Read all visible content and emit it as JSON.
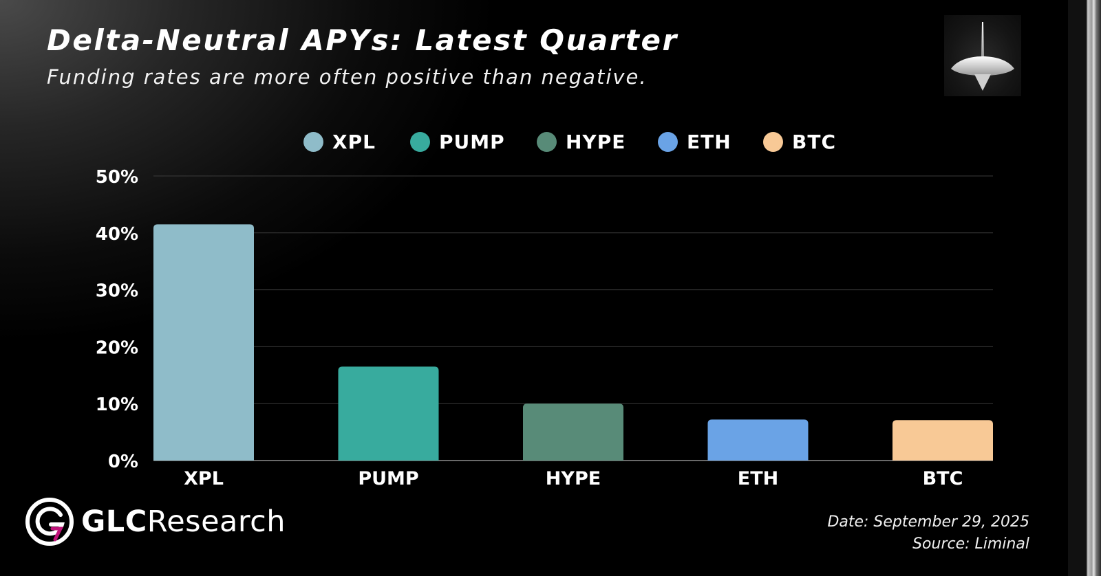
{
  "chart_data": {
    "type": "bar",
    "title": "Delta-Neutral APYs: Latest Quarter",
    "subtitle": "Funding rates are more often positive than negative.",
    "categories": [
      "XPL",
      "PUMP",
      "HYPE",
      "ETH",
      "BTC"
    ],
    "values": [
      41.5,
      16.5,
      10.0,
      7.2,
      7.1
    ],
    "colors": [
      "#8fbcc9",
      "#38ab9e",
      "#588b78",
      "#6aa3e6",
      "#f8c996"
    ],
    "legend": [
      {
        "name": "XPL",
        "color": "#8fbcc9"
      },
      {
        "name": "PUMP",
        "color": "#38ab9e"
      },
      {
        "name": "HYPE",
        "color": "#588b78"
      },
      {
        "name": "ETH",
        "color": "#6aa3e6"
      },
      {
        "name": "BTC",
        "color": "#f8c996"
      }
    ],
    "ylim": [
      0,
      50
    ],
    "yticks": [
      0,
      10,
      20,
      30,
      40,
      50
    ],
    "ytick_labels": [
      "0%",
      "10%",
      "20%",
      "30%",
      "40%",
      "50%"
    ],
    "xlabel": "",
    "ylabel": "",
    "legend_position": "top-center",
    "grid": true
  },
  "branding": {
    "name_bold": "GLC",
    "name_light": "Research",
    "logo_icon": "glc-logo-icon",
    "corner_icon": "spinning-top-icon"
  },
  "footer": {
    "date": "Date: September 29, 2025",
    "source": "Source: Liminal"
  }
}
